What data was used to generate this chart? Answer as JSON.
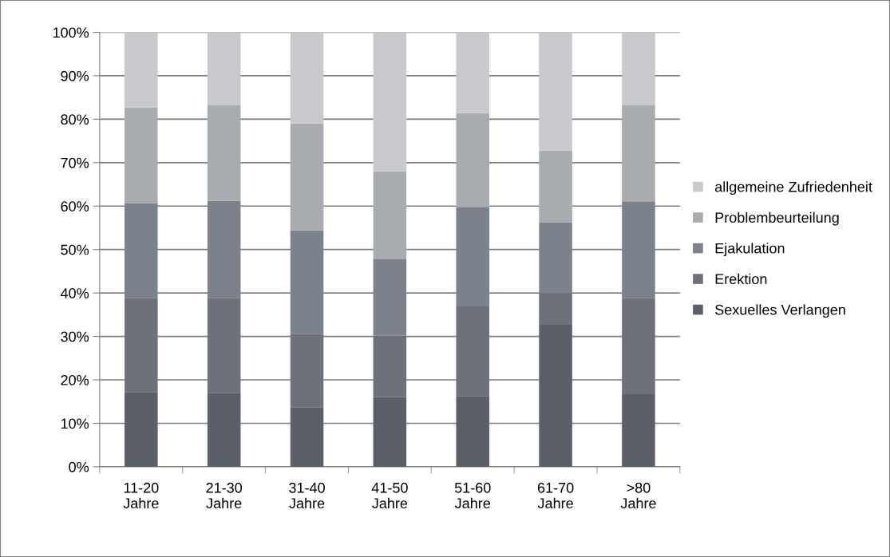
{
  "chart_data": {
    "type": "bar",
    "stacked": true,
    "categories": [
      "11-20\nJahre",
      "21-30\nJahre",
      "31-40\nJahre",
      "41-50\nJahre",
      "51-60\nJahre",
      "61-70\nJahre",
      ">80\nJahre"
    ],
    "series": [
      {
        "name": "Sexuelles Verlangen",
        "color": "#5b5f67",
        "values": [
          17.2,
          17.0,
          13.7,
          16.0,
          16.3,
          32.7,
          16.7
        ]
      },
      {
        "name": "Erektion",
        "color": "#6d7179",
        "values": [
          21.7,
          21.9,
          16.9,
          14.2,
          20.6,
          7.3,
          22.2
        ]
      },
      {
        "name": "Ejakulation",
        "color": "#7c828b",
        "values": [
          21.8,
          22.3,
          23.8,
          17.7,
          22.9,
          16.3,
          22.2
        ]
      },
      {
        "name": "Problembeurteilung",
        "color": "#a8abaf",
        "values": [
          22.0,
          22.0,
          24.6,
          20.1,
          21.6,
          16.5,
          22.1
        ]
      },
      {
        "name": "allgemeine Zufriedenheit",
        "color": "#c8c9cc",
        "values": [
          17.3,
          16.8,
          21.0,
          32.0,
          18.6,
          27.2,
          16.8
        ]
      }
    ],
    "ylim": [
      0,
      100
    ],
    "yticks": [
      {
        "value": 0,
        "label": "0%"
      },
      {
        "value": 10,
        "label": "10%"
      },
      {
        "value": 20,
        "label": "20%"
      },
      {
        "value": 30,
        "label": "30%"
      },
      {
        "value": 40,
        "label": "40%"
      },
      {
        "value": 50,
        "label": "50%"
      },
      {
        "value": 60,
        "label": "60%"
      },
      {
        "value": 70,
        "label": "70%"
      },
      {
        "value": 80,
        "label": "80%"
      },
      {
        "value": 90,
        "label": "90%"
      },
      {
        "value": 100,
        "label": "100%"
      }
    ],
    "grid": "y",
    "legend": "right"
  }
}
